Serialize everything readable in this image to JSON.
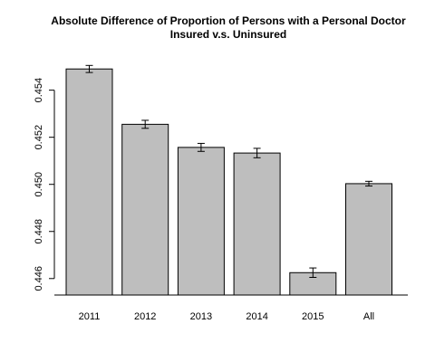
{
  "chart_data": {
    "type": "bar",
    "title": "Absolute Difference of Proportion of Persons with a Personal Doctor",
    "subtitle": "Insured v.s. Uninsured",
    "xlabel": "",
    "ylabel": "",
    "categories": [
      "2011",
      "2012",
      "2013",
      "2014",
      "2015",
      "All"
    ],
    "values": [
      0.4549,
      0.45255,
      0.45157,
      0.45133,
      0.44625,
      0.45003
    ],
    "error_lower": [
      0.45475,
      0.45238,
      0.4514,
      0.45113,
      0.44605,
      0.44993
    ],
    "error_upper": [
      0.45505,
      0.45272,
      0.45174,
      0.45153,
      0.44645,
      0.45013
    ],
    "yticks": [
      0.446,
      0.448,
      0.45,
      0.452,
      0.454
    ],
    "ytick_labels": [
      "0.446",
      "0.448",
      "0.450",
      "0.452",
      "0.454"
    ],
    "ylim": [
      0.4453,
      0.4556
    ],
    "grid": false,
    "legend": "none",
    "colors": {
      "bar_fill": "#bebebe",
      "bar_stroke": "#000000",
      "axis": "#000000",
      "error_bar": "#000000"
    }
  }
}
